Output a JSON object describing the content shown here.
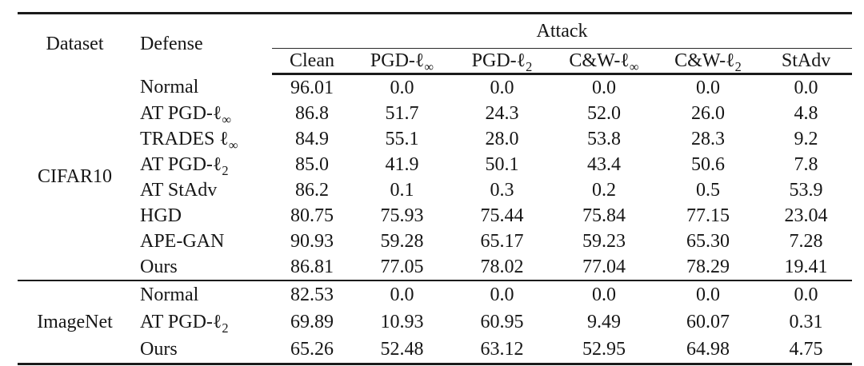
{
  "colors": {
    "text": "#161616",
    "rule": "#1b1b1b",
    "background": "#ffffff"
  },
  "table": {
    "header": {
      "dataset": "Dataset",
      "defense": "Defense",
      "attack_group": "Attack",
      "attack_columns": [
        {
          "base": "Clean",
          "sub": ""
        },
        {
          "base": "PGD-ℓ",
          "sub": "∞"
        },
        {
          "base": "PGD-ℓ",
          "sub": "2"
        },
        {
          "base": "C&W-ℓ",
          "sub": "∞"
        },
        {
          "base": "C&W-ℓ",
          "sub": "2"
        },
        {
          "base": "StAdv",
          "sub": ""
        }
      ]
    },
    "sections": [
      {
        "dataset": "CIFAR10",
        "rows": [
          {
            "defense": {
              "base": "Normal",
              "sub": ""
            },
            "values": [
              "96.01",
              "0.0",
              "0.0",
              "0.0",
              "0.0",
              "0.0"
            ]
          },
          {
            "defense": {
              "base": "AT PGD-ℓ",
              "sub": "∞"
            },
            "values": [
              "86.8",
              "51.7",
              "24.3",
              "52.0",
              "26.0",
              "4.8"
            ]
          },
          {
            "defense": {
              "base": "TRADES ℓ",
              "sub": "∞"
            },
            "values": [
              "84.9",
              "55.1",
              "28.0",
              "53.8",
              "28.3",
              "9.2"
            ]
          },
          {
            "defense": {
              "base": "AT PGD-ℓ",
              "sub": "2"
            },
            "values": [
              "85.0",
              "41.9",
              "50.1",
              "43.4",
              "50.6",
              "7.8"
            ]
          },
          {
            "defense": {
              "base": "AT StAdv",
              "sub": ""
            },
            "values": [
              "86.2",
              "0.1",
              "0.3",
              "0.2",
              "0.5",
              "53.9"
            ]
          },
          {
            "defense": {
              "base": "HGD",
              "sub": ""
            },
            "values": [
              "80.75",
              "75.93",
              "75.44",
              "75.84",
              "77.15",
              "23.04"
            ]
          },
          {
            "defense": {
              "base": "APE-GAN",
              "sub": ""
            },
            "values": [
              "90.93",
              "59.28",
              "65.17",
              "59.23",
              "65.30",
              "7.28"
            ]
          },
          {
            "defense": {
              "base": "Ours",
              "sub": ""
            },
            "values": [
              "86.81",
              "77.05",
              "78.02",
              "77.04",
              "78.29",
              "19.41"
            ]
          }
        ]
      },
      {
        "dataset": "ImageNet",
        "rows": [
          {
            "defense": {
              "base": "Normal",
              "sub": ""
            },
            "values": [
              "82.53",
              "0.0",
              "0.0",
              "0.0",
              "0.0",
              "0.0"
            ]
          },
          {
            "defense": {
              "base": "AT PGD-ℓ",
              "sub": "2"
            },
            "values": [
              "69.89",
              "10.93",
              "60.95",
              "9.49",
              "60.07",
              "0.31"
            ]
          },
          {
            "defense": {
              "base": "Ours",
              "sub": ""
            },
            "values": [
              "65.26",
              "52.48",
              "63.12",
              "52.95",
              "64.98",
              "4.75"
            ]
          }
        ]
      }
    ]
  }
}
